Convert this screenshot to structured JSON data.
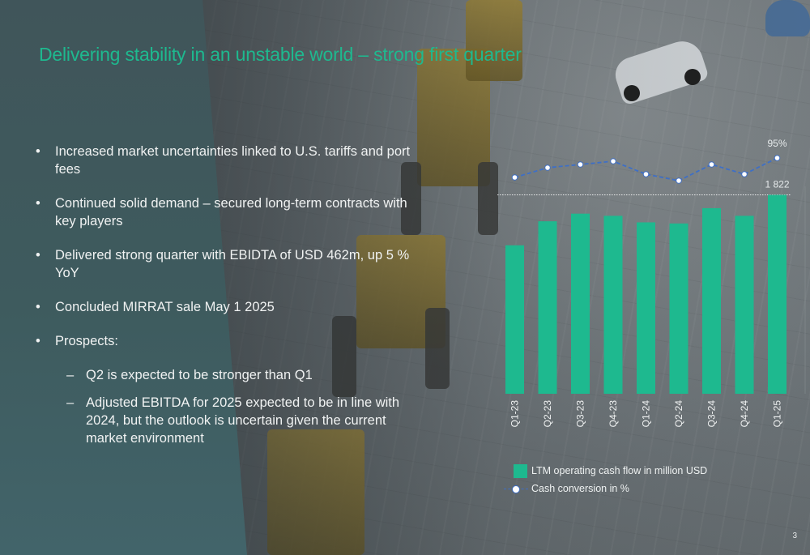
{
  "slide": {
    "title": "Delivering stability in an unstable world – strong first quarter",
    "page_number": "3",
    "accent_color": "#1eb98f",
    "line_color": "#3e6fc6"
  },
  "bullets": [
    "Increased market uncertainties linked to U.S. tariffs and port fees",
    "Continued solid demand – secured long-term contracts with key players",
    "Delivered strong quarter with EBIDTA of USD 462m, up 5 % YoY",
    "Concluded MIRRAT sale May 1 2025",
    "Prospects:"
  ],
  "sub_bullets": [
    "Q2 is expected  to be stronger than Q1",
    "Adjusted EBITDA for 2025 expected to be in line with 2024, but the outlook is uncertain given the current market environment"
  ],
  "bullet_marker": "•",
  "sub_bullet_marker": "–",
  "chart_data": {
    "type": "bar",
    "categories": [
      "Q1-23",
      "Q2-23",
      "Q3-23",
      "Q4-23",
      "Q1-24",
      "Q2-24",
      "Q3-24",
      "Q4-24",
      "Q1-25"
    ],
    "series": [
      {
        "name": "LTM operating cash flow in million USD",
        "type": "bar",
        "values": [
          1360,
          1580,
          1650,
          1630,
          1570,
          1560,
          1700,
          1630,
          1822
        ]
      },
      {
        "name": "Cash conversion in %",
        "type": "line",
        "values": [
          89,
          92,
          93,
          94,
          90,
          88,
          93,
          90,
          95
        ]
      }
    ],
    "data_labels": {
      "bar_last": "1 822",
      "line_last": "95%"
    },
    "reference_line": 1822,
    "legend_position": "bottom"
  }
}
